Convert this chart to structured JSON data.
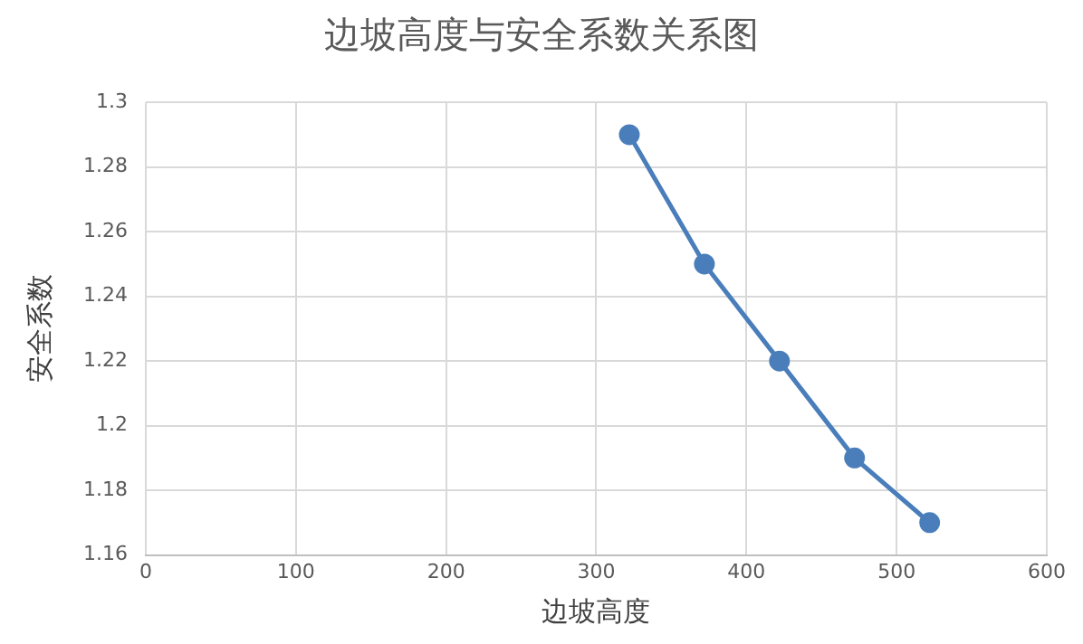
{
  "chart_data": {
    "type": "line",
    "title": "边坡高度与安全系数关系图",
    "xlabel": "边坡高度",
    "ylabel": "安全系数",
    "series": [
      {
        "color": "#4a7ebb",
        "x": [
          322,
          372,
          422,
          472,
          522
        ],
        "values": [
          1.29,
          1.25,
          1.22,
          1.19,
          1.17
        ]
      }
    ],
    "xlim": [
      0,
      600
    ],
    "xticks": [
      0,
      100,
      200,
      300,
      400,
      500,
      600
    ],
    "ylim": [
      1.16,
      1.3
    ],
    "yticks": [
      {
        "value": 1.16,
        "label": "1.16"
      },
      {
        "value": 1.18,
        "label": "1.18"
      },
      {
        "value": 1.2,
        "label": "1.2"
      },
      {
        "value": 1.22,
        "label": "1.22"
      },
      {
        "value": 1.24,
        "label": "1.24"
      },
      {
        "value": 1.26,
        "label": "1.26"
      },
      {
        "value": 1.28,
        "label": "1.28"
      },
      {
        "value": 1.3,
        "label": "1.3"
      }
    ],
    "grid": true,
    "marker": "circle",
    "line_style": "solid"
  }
}
